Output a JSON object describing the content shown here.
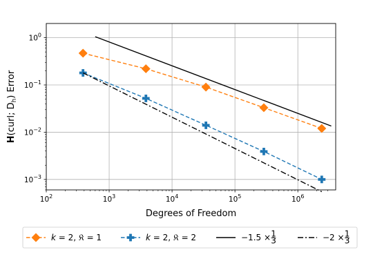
{
  "chart_data": {
    "type": "line",
    "xscale": "log",
    "yscale": "log",
    "xlim": [
      100,
      4000000
    ],
    "ylim": [
      0.0006,
      2
    ],
    "xlabel": "Degrees of Freedom",
    "ylabel": "H(curl; D_h) Error",
    "ylabel_parts": {
      "bold": "H",
      "a": "(curl; D",
      "sub": "h",
      "b": ") Error"
    },
    "x_ticks": [
      {
        "value": 100,
        "base": "10",
        "exp": "2"
      },
      {
        "value": 1000,
        "base": "10",
        "exp": "3"
      },
      {
        "value": 10000,
        "base": "10",
        "exp": "4"
      },
      {
        "value": 100000,
        "base": "10",
        "exp": "5"
      },
      {
        "value": 1000000,
        "base": "10",
        "exp": "6"
      }
    ],
    "y_ticks": [
      {
        "value": 0.001,
        "base": "10",
        "exp": "−3"
      },
      {
        "value": 0.01,
        "base": "10",
        "exp": "−2"
      },
      {
        "value": 0.1,
        "base": "10",
        "exp": "−1"
      },
      {
        "value": 1,
        "base": "10",
        "exp": "0"
      }
    ],
    "grid": true,
    "legend_position": "bottom",
    "series": [
      {
        "name": "k = 2, 𝔎 = 1",
        "label_parts": {
          "a": "k",
          "b": " = 2, ",
          "c": "𝔎",
          "d": " = 1"
        },
        "color": "#ff7f0e",
        "linestyle": "dashed",
        "marker": "diamond",
        "x": [
          384,
          3840,
          34560,
          288000,
          2400000
        ],
        "y": [
          0.47,
          0.22,
          0.09,
          0.033,
          0.012
        ]
      },
      {
        "name": "k = 2, 𝔎 = 2",
        "label_parts": {
          "a": "k",
          "b": " = 2, ",
          "c": "𝔎",
          "d": " = 2"
        },
        "color": "#1f77b4",
        "linestyle": "dashed",
        "marker": "plus",
        "x": [
          384,
          3840,
          34560,
          288000,
          2400000
        ],
        "y": [
          0.18,
          0.052,
          0.014,
          0.0039,
          0.001
        ]
      },
      {
        "name": "−1.5 × 1/3",
        "label_parts": {
          "a": "−1.5 × ",
          "num": "1",
          "den": "3"
        },
        "color": "#000000",
        "linestyle": "solid",
        "marker": "none",
        "x": [
          600,
          3400000
        ],
        "y": [
          1.05,
          0.0135
        ]
      },
      {
        "name": "−2 × 1/3",
        "label_parts": {
          "a": "−2 × ",
          "num": "1",
          "den": "3"
        },
        "color": "#000000",
        "linestyle": "dashdot",
        "marker": "none",
        "x": [
          384,
          2400000
        ],
        "y": [
          0.18,
          0.00055
        ]
      }
    ]
  }
}
